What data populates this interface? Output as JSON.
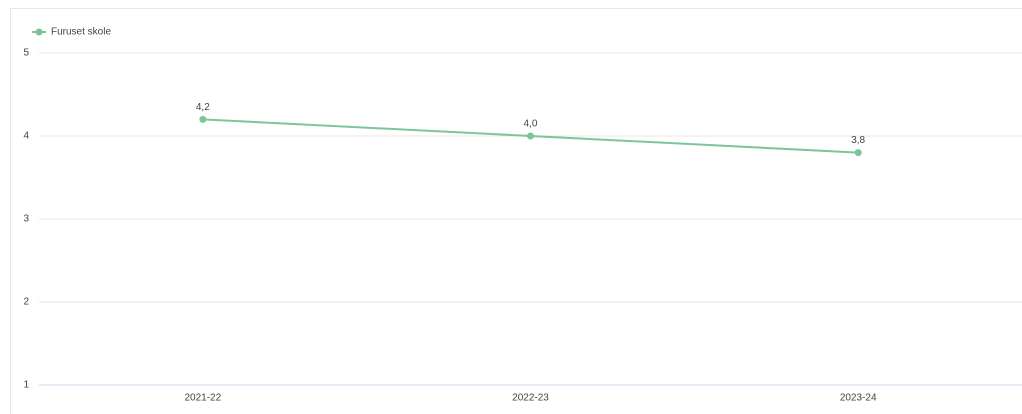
{
  "chart_data": {
    "type": "line",
    "categories": [
      "2021-22",
      "2022-23",
      "2023-24"
    ],
    "series": [
      {
        "name": "Furuset skole",
        "color": "#7cc49a",
        "values": [
          4.2,
          4.0,
          3.8
        ],
        "value_labels": [
          "4,2",
          "4,0",
          "3,8"
        ]
      }
    ],
    "ylim": [
      1,
      5
    ],
    "yticks": [
      1,
      2,
      3,
      4,
      5
    ],
    "grid": true,
    "legend": "top-left"
  }
}
